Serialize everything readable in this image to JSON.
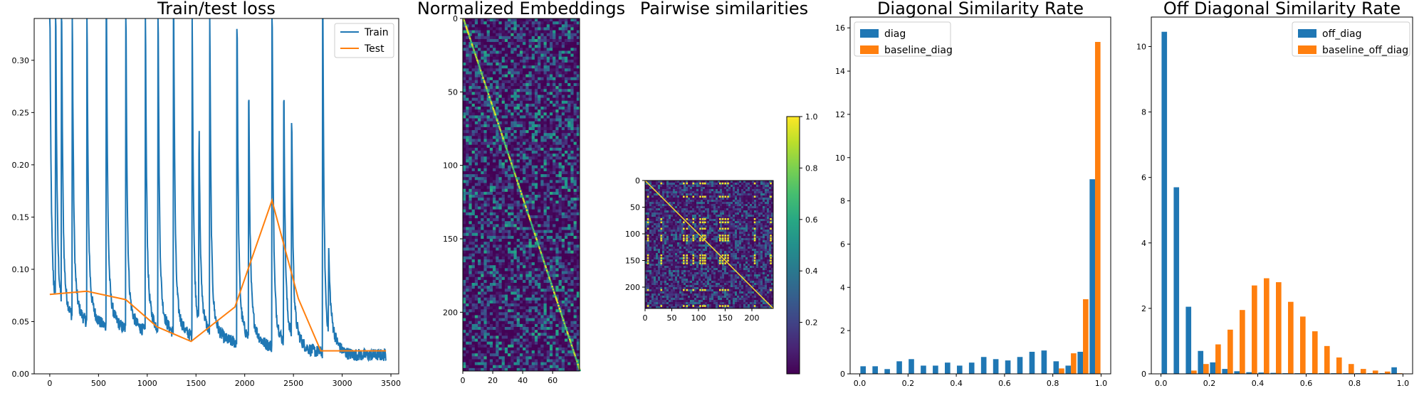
{
  "colors": {
    "train": "#1f77b4",
    "test": "#ff7f0e",
    "diag": "#1f77b4",
    "baseline": "#ff7f0e"
  },
  "chart_data": [
    {
      "type": "line",
      "title": "Train/test loss",
      "xlim": [
        -160,
        3580
      ],
      "ylim": [
        0.0,
        0.34
      ],
      "xticks": [
        "0",
        "500",
        "1000",
        "1500",
        "2000",
        "2500",
        "3000",
        "3500"
      ],
      "yticks": [
        "0.00",
        "0.05",
        "0.10",
        "0.15",
        "0.20",
        "0.25",
        "0.30"
      ],
      "legend_placement": "upper right",
      "series": [
        {
          "name": "Train",
          "spikes": [
            [
              0,
              0.34
            ],
            [
              60,
              0.34
            ],
            [
              120,
              0.34
            ],
            [
              230,
              0.34
            ],
            [
              380,
              0.34
            ],
            [
              580,
              0.34
            ],
            [
              780,
              0.34
            ],
            [
              980,
              0.34
            ],
            [
              1110,
              0.34
            ],
            [
              1270,
              0.34
            ],
            [
              1460,
              0.34
            ],
            [
              1530,
              0.21
            ],
            [
              1640,
              0.34
            ],
            [
              1920,
              0.33
            ],
            [
              2040,
              0.26
            ],
            [
              2280,
              0.34
            ],
            [
              2400,
              0.26
            ],
            [
              2480,
              0.24
            ],
            [
              2800,
              0.34
            ],
            [
              2860,
              0.07
            ]
          ],
          "floor_start": 0.05,
          "floor_end": 0.018,
          "x_end": 3450
        },
        {
          "name": "Test",
          "x": [
            0,
            380,
            780,
            1100,
            1450,
            1900,
            2280,
            2550,
            2780,
            3450
          ],
          "y": [
            0.076,
            0.079,
            0.071,
            0.045,
            0.031,
            0.064,
            0.166,
            0.072,
            0.022,
            0.022
          ]
        }
      ]
    },
    {
      "type": "heatmap",
      "title": "Normalized Embeddings",
      "rows": 240,
      "cols": 78,
      "xticks": [
        "0",
        "20",
        "40",
        "60"
      ],
      "yticks": [
        "0",
        "50",
        "100",
        "150",
        "200"
      ],
      "pattern": "diagonal line from (0,0) to (78,240) on noisy background"
    },
    {
      "type": "heatmap",
      "title": "Pairwise similarities",
      "rows": 240,
      "cols": 240,
      "xticks": [
        "0",
        "50",
        "100",
        "150",
        "200"
      ],
      "yticks": [
        "0",
        "50",
        "100",
        "150",
        "200"
      ],
      "colorbar_ticks": [
        "0.2",
        "0.4",
        "0.6",
        "0.8",
        "1.0"
      ],
      "colorbar_range": [
        0.0,
        1.0
      ],
      "hot_positions": [
        5,
        30,
        72,
        78,
        90,
        103,
        108,
        112,
        140,
        145,
        150,
        155,
        205,
        235
      ]
    },
    {
      "type": "bar",
      "title": "Diagonal Similarity Rate",
      "xlim": [
        -0.04,
        1.04
      ],
      "ylim": [
        0,
        16.5
      ],
      "xticks": [
        "0.0",
        "0.2",
        "0.4",
        "0.6",
        "0.8",
        "1.0"
      ],
      "yticks": [
        "0",
        "2",
        "4",
        "6",
        "8",
        "10",
        "12",
        "14",
        "16"
      ],
      "legend_placement": "upper left",
      "series": [
        {
          "name": "diag",
          "bins": [
            0.0,
            0.05,
            0.1,
            0.15,
            0.2,
            0.25,
            0.3,
            0.35,
            0.4,
            0.45,
            0.5,
            0.55,
            0.6,
            0.65,
            0.7,
            0.75,
            0.8,
            0.85,
            0.9,
            0.95
          ],
          "values": [
            0.35,
            0.35,
            0.22,
            0.58,
            0.68,
            0.38,
            0.38,
            0.52,
            0.38,
            0.52,
            0.78,
            0.68,
            0.62,
            0.78,
            1.02,
            1.08,
            0.58,
            0.38,
            1.02,
            9.0
          ]
        },
        {
          "name": "baseline_diag",
          "bins": [
            0.8,
            0.85,
            0.9,
            0.95
          ],
          "values": [
            0.25,
            0.95,
            3.45,
            15.35
          ]
        }
      ]
    },
    {
      "type": "bar",
      "title": "Off Diagonal Similarity Rate",
      "xlim": [
        -0.04,
        1.04
      ],
      "ylim": [
        0,
        10.9
      ],
      "xticks": [
        "0.0",
        "0.2",
        "0.4",
        "0.6",
        "0.8",
        "1.0"
      ],
      "yticks": [
        "0",
        "2",
        "4",
        "6",
        "8",
        "10"
      ],
      "legend_placement": "upper right",
      "series": [
        {
          "name": "off_diag",
          "bins": [
            0.0,
            0.05,
            0.1,
            0.15,
            0.2,
            0.25,
            0.3,
            0.35,
            0.4,
            0.45,
            0.5,
            0.55,
            0.6,
            0.65,
            0.7,
            0.75,
            0.8,
            0.85,
            0.9,
            0.95
          ],
          "values": [
            10.45,
            5.7,
            2.05,
            0.7,
            0.35,
            0.15,
            0.08,
            0.05,
            0.04,
            0.03,
            0.02,
            0.02,
            0.02,
            0.02,
            0.02,
            0.02,
            0.02,
            0.02,
            0.02,
            0.2
          ]
        },
        {
          "name": "baseline_off_diag",
          "bins": [
            0.1,
            0.15,
            0.2,
            0.25,
            0.3,
            0.35,
            0.4,
            0.45,
            0.5,
            0.55,
            0.6,
            0.65,
            0.7,
            0.75,
            0.8,
            0.85,
            0.9,
            0.95
          ],
          "values": [
            0.1,
            0.3,
            0.9,
            1.35,
            1.95,
            2.7,
            2.92,
            2.8,
            2.2,
            1.75,
            1.3,
            0.85,
            0.5,
            0.3,
            0.15,
            0.1,
            0.07,
            0.02
          ]
        }
      ]
    }
  ]
}
